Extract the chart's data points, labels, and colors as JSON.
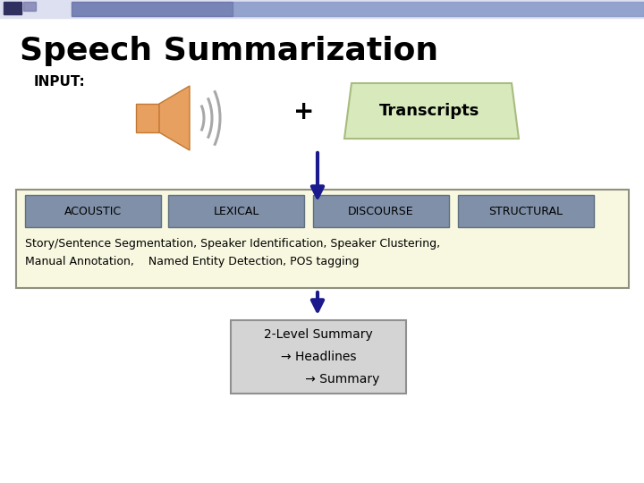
{
  "title": "Speech Summarization",
  "title_fontsize": 26,
  "title_fontweight": "bold",
  "bg_color": "#ffffff",
  "input_label": "INPUT:",
  "input_fontsize": 11,
  "plus_label": "+",
  "plus_fontsize": 20,
  "transcripts_label": "Transcripts",
  "transcripts_fontsize": 13,
  "transcripts_box_color": "#d8eabc",
  "transcripts_box_edge": "#a8bc80",
  "acoustic_label": "ACOUSTIC",
  "lexical_label": "LEXICAL",
  "discourse_label": "DISCOURSE",
  "structural_label": "STRUCTURAL",
  "cat_fontsize": 9,
  "box_color": "#8090a8",
  "box_edge": "#607080",
  "feature_box_bg": "#f8f8e0",
  "feature_box_edge": "#909080",
  "features_text1": "Story/Sentence Segmentation, Speaker Identification, Speaker Clustering,",
  "features_text2": "Manual Annotation,    Named Entity Detection, POS tagging",
  "features_fontsize": 9,
  "summary_line1": "2-Level Summary",
  "summary_line2": "→ Headlines",
  "summary_line3": "      → Summary",
  "summary_fontsize": 10,
  "summary_box_color": "#d4d4d4",
  "summary_box_edge": "#909090",
  "arrow_color": "#1a1a8c",
  "speaker_body_color": "#e8a060",
  "speaker_body_edge": "#c07830",
  "wave_color": "#a8a8a8",
  "top_bar_left_color": "#8080b8",
  "top_bar_right_color": "#b0b8d0",
  "sq1_color": "#303060",
  "sq2_color": "#7070a8"
}
